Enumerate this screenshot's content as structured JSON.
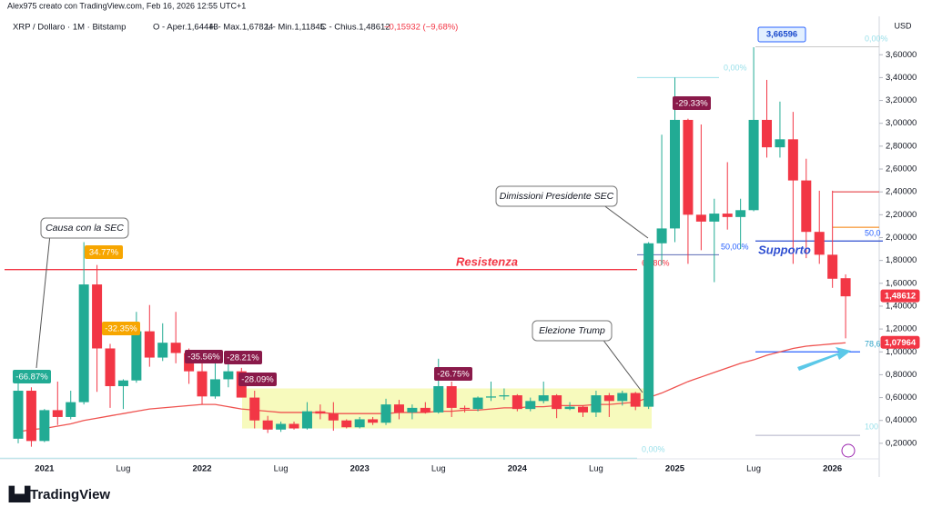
{
  "header": "Alex975 creato con TradingView.com, Feb 16, 2026 12:55 UTC+1",
  "footer": "TradingView",
  "chart_data": {
    "type": "candlestick",
    "title": "XRP / Dollaro · 1M · Bitstamp",
    "ohlc_text": [
      "O - Aper.1,64443",
      "H - Max.1,67824",
      "L - Min.1,11845",
      "C - Chius.1,48612",
      "−0,15932 (−9,68%)"
    ],
    "y_axis_label": "USD",
    "categories": [
      null,
      null,
      "2021",
      null,
      null,
      null,
      null,
      null,
      "Lug",
      null,
      null,
      null,
      null,
      null,
      "2022",
      null,
      null,
      null,
      null,
      null,
      "Lug",
      null,
      null,
      null,
      null,
      null,
      "2023",
      null,
      null,
      null,
      null,
      null,
      "Lug",
      null,
      null,
      null,
      null,
      null,
      "2024",
      null,
      null,
      null,
      null,
      null,
      "Lug",
      null,
      null,
      null,
      null,
      null,
      "2025",
      null,
      null,
      null,
      null,
      null,
      "Lug",
      null,
      null,
      null,
      null,
      null,
      "2026",
      null
    ],
    "open": [
      0.24,
      0.66,
      0.22,
      0.49,
      0.43,
      0.56,
      1.59,
      1.03,
      0.7,
      0.75,
      1.18,
      0.95,
      1.08,
      0.99,
      0.83,
      0.61,
      0.76,
      0.83,
      0.6,
      0.4,
      0.32,
      0.37,
      0.33,
      0.48,
      0.46,
      0.4,
      0.34,
      0.41,
      0.38,
      0.54,
      0.47,
      0.51,
      0.47,
      0.7,
      0.51,
      0.5,
      0.6,
      0.61,
      0.62,
      0.5,
      0.57,
      0.62,
      0.5,
      0.52,
      0.47,
      0.62,
      0.57,
      0.64,
      0.52,
      1.95,
      2.08,
      3.03,
      2.2,
      2.14,
      2.21,
      2.18,
      2.24,
      3.03,
      2.79,
      2.86,
      2.5,
      2.05,
      1.85,
      1.64443
    ],
    "high": [
      0.78,
      0.69,
      0.5,
      0.74,
      0.66,
      1.96,
      1.76,
      1.07,
      0.76,
      1.35,
      1.41,
      1.25,
      1.35,
      1.03,
      0.91,
      0.91,
      0.91,
      0.86,
      0.66,
      0.44,
      0.39,
      0.39,
      0.56,
      0.54,
      0.56,
      0.41,
      0.43,
      0.43,
      0.59,
      0.58,
      0.54,
      0.56,
      0.94,
      0.74,
      0.53,
      0.61,
      0.74,
      0.68,
      0.63,
      0.6,
      0.74,
      0.63,
      0.56,
      0.53,
      0.66,
      0.64,
      0.66,
      0.65,
      1.96,
      2.9,
      3.4,
      3.04,
      2.99,
      2.34,
      2.66,
      2.34,
      3.66596,
      3.38,
      3.19,
      3.1,
      2.69,
      2.41,
      2.41,
      1.67824
    ],
    "low": [
      0.2,
      0.17,
      0.21,
      0.36,
      0.41,
      0.54,
      0.65,
      0.51,
      0.5,
      0.73,
      0.87,
      0.92,
      0.9,
      0.72,
      0.54,
      0.59,
      0.69,
      0.6,
      0.33,
      0.29,
      0.3,
      0.32,
      0.32,
      0.41,
      0.31,
      0.33,
      0.33,
      0.36,
      0.36,
      0.41,
      0.41,
      0.46,
      0.46,
      0.43,
      0.47,
      0.48,
      0.57,
      0.58,
      0.48,
      0.48,
      0.55,
      0.42,
      0.49,
      0.43,
      0.43,
      0.43,
      0.53,
      0.49,
      0.5,
      1.76,
      1.96,
      1.77,
      1.89,
      1.61,
      2.07,
      1.9,
      2.23,
      2.7,
      2.7,
      1.77,
      1.82,
      1.77,
      1.56,
      1.11845
    ],
    "close": [
      0.66,
      0.22,
      0.49,
      0.43,
      0.56,
      1.59,
      1.03,
      0.7,
      0.75,
      1.18,
      0.95,
      1.08,
      0.99,
      0.83,
      0.61,
      0.76,
      0.83,
      0.6,
      0.4,
      0.32,
      0.37,
      0.33,
      0.48,
      0.46,
      0.4,
      0.34,
      0.41,
      0.38,
      0.54,
      0.47,
      0.51,
      0.47,
      0.7,
      0.51,
      0.5,
      0.6,
      0.61,
      0.62,
      0.5,
      0.57,
      0.62,
      0.5,
      0.52,
      0.47,
      0.62,
      0.57,
      0.64,
      0.52,
      1.95,
      2.08,
      3.03,
      2.2,
      2.14,
      2.21,
      2.18,
      2.24,
      3.03,
      2.79,
      2.86,
      2.5,
      2.05,
      1.85,
      1.64,
      1.48612
    ],
    "up_color": "#22ab94",
    "down_color": "#f23645",
    "moving_average": {
      "color": "#ef5350",
      "values": [
        0.3,
        0.32,
        0.33,
        0.35,
        0.37,
        0.4,
        0.42,
        0.44,
        0.46,
        0.48,
        0.5,
        0.51,
        0.52,
        0.53,
        0.54,
        0.54,
        0.52,
        0.5,
        0.49,
        0.48,
        0.47,
        0.47,
        0.47,
        0.47,
        0.46,
        0.46,
        0.46,
        0.46,
        0.46,
        0.47,
        0.47,
        0.47,
        0.48,
        0.48,
        0.49,
        0.49,
        0.5,
        0.51,
        0.51,
        0.52,
        0.52,
        0.53,
        0.53,
        0.53,
        0.54,
        0.54,
        0.55,
        0.56,
        0.6,
        0.64,
        0.69,
        0.74,
        0.78,
        0.82,
        0.86,
        0.9,
        0.93,
        0.97,
        1.0,
        1.03,
        1.05,
        1.06,
        1.07,
        1.07964
      ]
    },
    "ylim": [
      0.04,
      3.92
    ],
    "yticks": [
      {
        "value": 0.2,
        "label": "0,20000"
      },
      {
        "value": 0.4,
        "label": "0,40000"
      },
      {
        "value": 0.6,
        "label": "0,60000"
      },
      {
        "value": 0.8,
        "label": "0,80000"
      },
      {
        "value": 1.0,
        "label": "1,00000"
      },
      {
        "value": 1.2,
        "label": "1,20000"
      },
      {
        "value": 1.4,
        "label": "1,40000"
      },
      {
        "value": 1.6,
        "label": "1,60000"
      },
      {
        "value": 1.8,
        "label": "1,80000"
      },
      {
        "value": 2.0,
        "label": "2,00000"
      },
      {
        "value": 2.2,
        "label": "2,20000"
      },
      {
        "value": 2.4,
        "label": "2,40000"
      },
      {
        "value": 2.6,
        "label": "2,60000"
      },
      {
        "value": 2.8,
        "label": "2,80000"
      },
      {
        "value": 3.0,
        "label": "3,00000"
      },
      {
        "value": 3.2,
        "label": "3,20000"
      },
      {
        "value": 3.4,
        "label": "3,40000"
      },
      {
        "value": 3.6,
        "label": "3,60000"
      }
    ],
    "levels": [
      {
        "value": 1.72,
        "color": "#f23645"
      },
      {
        "value": 1.97,
        "color": "#2f4fd1"
      },
      {
        "value": 1.0,
        "color": "#2962ff"
      },
      {
        "value": 2.4,
        "color": "#e0272f"
      },
      {
        "value": 2.09,
        "color": "#f57c00"
      },
      {
        "value": 3.4,
        "color": "#9be0ea"
      },
      {
        "value": 1.85,
        "color": "#5b6bb5"
      },
      {
        "value": 3.67,
        "color": "#c8c8c8"
      },
      {
        "value": 0.27,
        "color": "#b0b0c8"
      },
      {
        "value": 0.07,
        "color": "#b6e6ea"
      }
    ],
    "range_box": [
      0.33,
      0.68
    ],
    "price_labels": [
      {
        "value": 3.66596,
        "label": "3,66596"
      },
      {
        "value": 1.48612,
        "label": "1,48612"
      },
      {
        "value": 1.07964,
        "label": "1,07964"
      }
    ],
    "change_labels": [
      "-66.87%",
      "34.77%",
      "-32.35%",
      "-35.56%",
      "-28.21%",
      "-28.09%",
      "-26.75%",
      "-29.33%"
    ],
    "events": [
      "Causa con la SEC",
      "Dimissioni Presidente SEC",
      "Elezione Trump"
    ],
    "resistance_label": "Resistenza",
    "support_label": "Supporto",
    "fib_labels": [
      "0,00%",
      "50,00%",
      "61,80%",
      "0,00%",
      "50,0",
      "78,6",
      "100",
      "0,00%"
    ]
  }
}
